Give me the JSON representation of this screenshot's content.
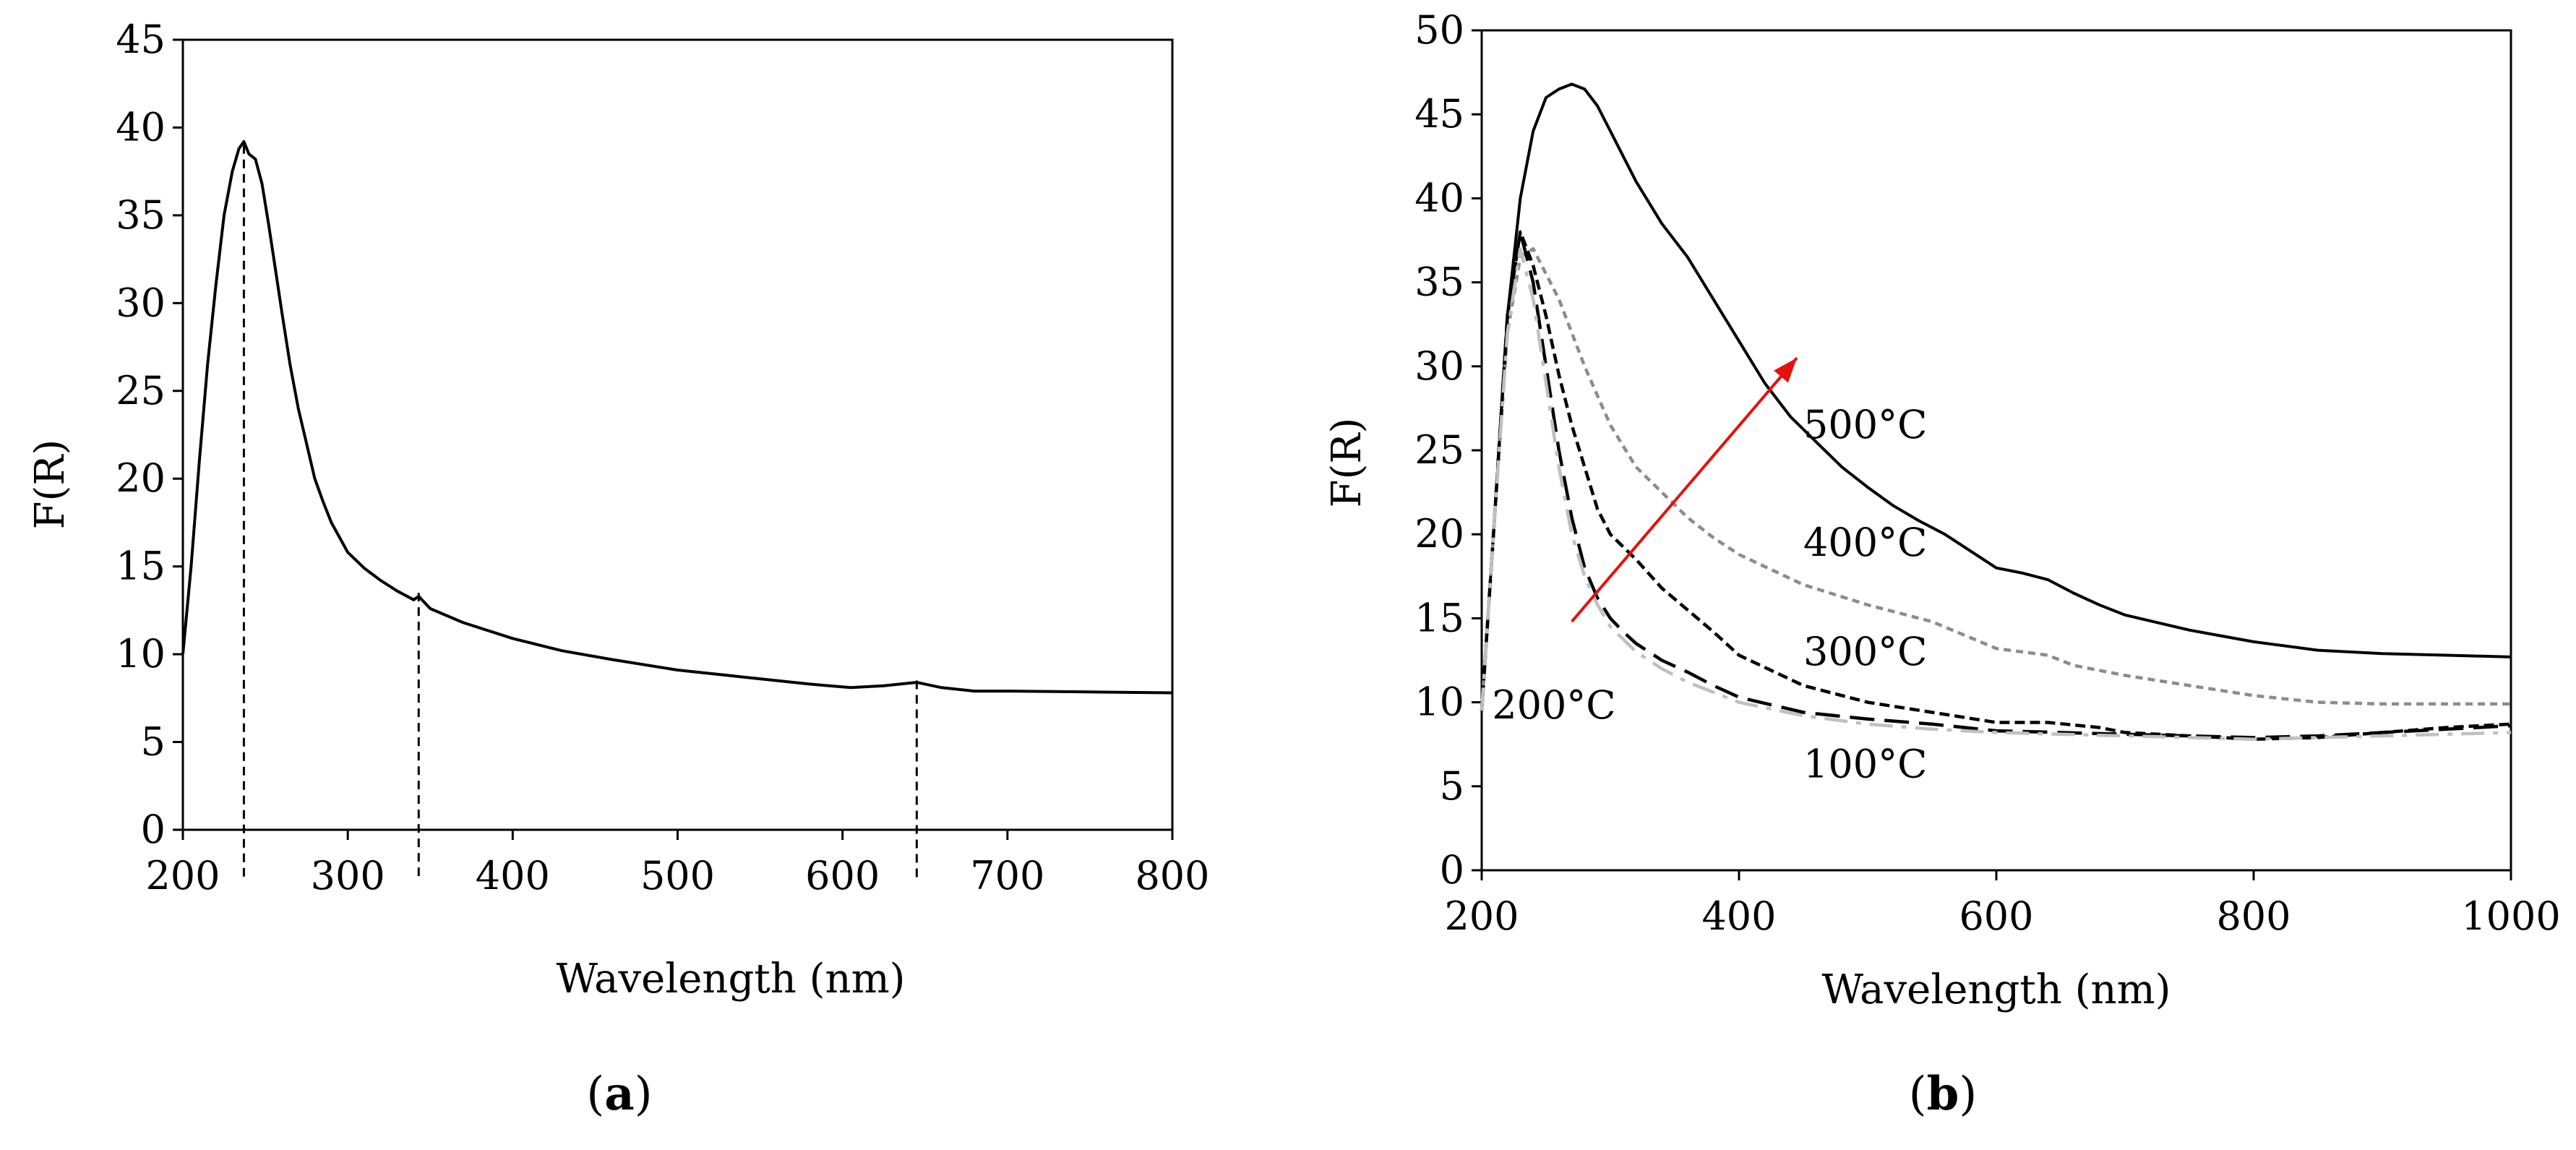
{
  "chart_data": [
    {
      "panel": "a",
      "panel_label": [
        "(",
        "a",
        ")"
      ],
      "type": "line",
      "title": "",
      "xlabel": "Wavelength (nm)",
      "ylabel": "F(R)",
      "xlim": [
        200,
        800
      ],
      "ylim": [
        0,
        45
      ],
      "xticks": [
        200,
        300,
        400,
        500,
        600,
        700,
        800
      ],
      "yticks": [
        0,
        5,
        10,
        15,
        20,
        25,
        30,
        35,
        40,
        45
      ],
      "grid": false,
      "series": [
        {
          "name": "spectrum",
          "color": "#000000",
          "dash": "solid",
          "x": [
            200,
            205,
            210,
            215,
            220,
            225,
            230,
            234,
            237,
            240,
            244,
            248,
            252,
            256,
            260,
            265,
            270,
            275,
            280,
            285,
            290,
            300,
            310,
            320,
            330,
            340,
            343,
            350,
            370,
            400,
            430,
            460,
            500,
            540,
            580,
            605,
            625,
            645,
            660,
            680,
            700,
            750,
            800
          ],
          "y": [
            10,
            15,
            21,
            26.5,
            31,
            35,
            37.5,
            38.8,
            39.2,
            38.5,
            38.2,
            36.8,
            34.5,
            32,
            29.5,
            26.5,
            24,
            22,
            20,
            18.7,
            17.5,
            15.8,
            14.9,
            14.2,
            13.6,
            13.1,
            13.3,
            12.6,
            11.8,
            10.9,
            10.2,
            9.7,
            9.1,
            8.7,
            8.3,
            8.1,
            8.2,
            8.4,
            8.1,
            7.9,
            7.9,
            7.85,
            7.8
          ]
        }
      ],
      "markers": [
        {
          "x": 237,
          "y": 39
        },
        {
          "x": 343,
          "y": 13.5
        },
        {
          "x": 645,
          "y": 8.5
        }
      ]
    },
    {
      "panel": "b",
      "panel_label": [
        "(",
        "b",
        ")"
      ],
      "type": "line",
      "title": "",
      "xlabel": "Wavelength (nm)",
      "ylabel": "F(R)",
      "xlim": [
        200,
        1000
      ],
      "ylim": [
        0,
        50
      ],
      "xticks": [
        200,
        400,
        600,
        800,
        1000
      ],
      "yticks": [
        0,
        5,
        10,
        15,
        20,
        25,
        30,
        35,
        40,
        45,
        50
      ],
      "grid": false,
      "series": [
        {
          "name": "500°C",
          "color": "#000000",
          "dash": "solid",
          "label_at": [
            450,
            26.5
          ],
          "x": [
            200,
            210,
            220,
            230,
            240,
            250,
            260,
            270,
            280,
            290,
            300,
            320,
            340,
            360,
            380,
            400,
            420,
            440,
            460,
            480,
            500,
            520,
            540,
            560,
            580,
            600,
            620,
            640,
            660,
            680,
            700,
            750,
            800,
            850,
            900,
            950,
            1000
          ],
          "y": [
            9.5,
            21,
            33,
            40,
            44,
            46,
            46.5,
            46.8,
            46.5,
            45.5,
            44,
            41,
            38.5,
            36.5,
            34,
            31.5,
            29,
            27,
            25.5,
            24,
            22.8,
            21.7,
            20.8,
            20,
            19,
            18,
            17.7,
            17.3,
            16.5,
            15.8,
            15.2,
            14.3,
            13.6,
            13.1,
            12.9,
            12.8,
            12.7
          ]
        },
        {
          "name": "400°C",
          "color": "#8c8c8c",
          "dash": "short",
          "label_at": [
            450,
            19.5
          ],
          "x": [
            200,
            210,
            220,
            230,
            240,
            250,
            260,
            270,
            280,
            300,
            320,
            340,
            360,
            380,
            400,
            450,
            500,
            550,
            600,
            640,
            660,
            700,
            750,
            800,
            850,
            900,
            950,
            1000
          ],
          "y": [
            9.5,
            21,
            32,
            36.5,
            37,
            35.5,
            34,
            32,
            30,
            26.5,
            24,
            22.5,
            21,
            19.8,
            18.8,
            17,
            15.8,
            14.8,
            13.2,
            12.8,
            12.2,
            11.6,
            11,
            10.4,
            10,
            9.9,
            9.9,
            9.9
          ]
        },
        {
          "name": "300°C",
          "color": "#000000",
          "dash": "shortdash",
          "label_at": [
            450,
            13
          ],
          "x": [
            200,
            210,
            220,
            230,
            240,
            250,
            260,
            270,
            280,
            290,
            300,
            320,
            340,
            360,
            380,
            400,
            450,
            500,
            550,
            600,
            640,
            680,
            700,
            750,
            800,
            850,
            900,
            950,
            1000
          ],
          "y": [
            9.5,
            21,
            33,
            38,
            36,
            33,
            29.5,
            26.5,
            24,
            21.5,
            20,
            18.5,
            16.8,
            15.5,
            14.2,
            12.8,
            11,
            10,
            9.4,
            8.8,
            8.8,
            8.5,
            8.2,
            8,
            7.8,
            7.9,
            8.2,
            8.5,
            8.7
          ]
        },
        {
          "name": "200°C",
          "color": "#000000",
          "dash": "long",
          "label_at": [
            208,
            9.8
          ],
          "x": [
            200,
            210,
            220,
            230,
            240,
            250,
            260,
            270,
            280,
            290,
            300,
            310,
            320,
            340,
            360,
            380,
            400,
            450,
            500,
            550,
            600,
            650,
            700,
            750,
            800,
            850,
            900,
            950,
            1000
          ],
          "y": [
            9.5,
            21,
            33,
            38,
            35,
            30,
            25,
            21,
            18,
            16.2,
            15,
            14.2,
            13.5,
            12.5,
            11.8,
            11,
            10.3,
            9.4,
            9,
            8.7,
            8.3,
            8.2,
            8.1,
            8,
            7.9,
            8,
            8.2,
            8.4,
            8.6
          ]
        },
        {
          "name": "100°C",
          "color": "#c0c0c0",
          "dash": "dashdot",
          "label_at": [
            450,
            6.3
          ],
          "x": [
            200,
            210,
            220,
            230,
            240,
            250,
            260,
            270,
            280,
            290,
            300,
            320,
            340,
            360,
            380,
            400,
            450,
            500,
            550,
            600,
            650,
            700,
            750,
            800,
            850,
            900,
            950,
            1000
          ],
          "y": [
            9.5,
            21,
            32,
            37,
            34,
            29,
            24,
            20,
            17.5,
            15.8,
            14.5,
            13,
            12,
            11.2,
            10.6,
            10,
            9.2,
            8.7,
            8.4,
            8.2,
            8.1,
            8,
            7.9,
            7.8,
            7.9,
            8,
            8.1,
            8.2
          ]
        }
      ],
      "arrow": {
        "color": "#e3120b",
        "from": [
          270,
          14.8
        ],
        "to": [
          445,
          30.5
        ]
      }
    }
  ]
}
